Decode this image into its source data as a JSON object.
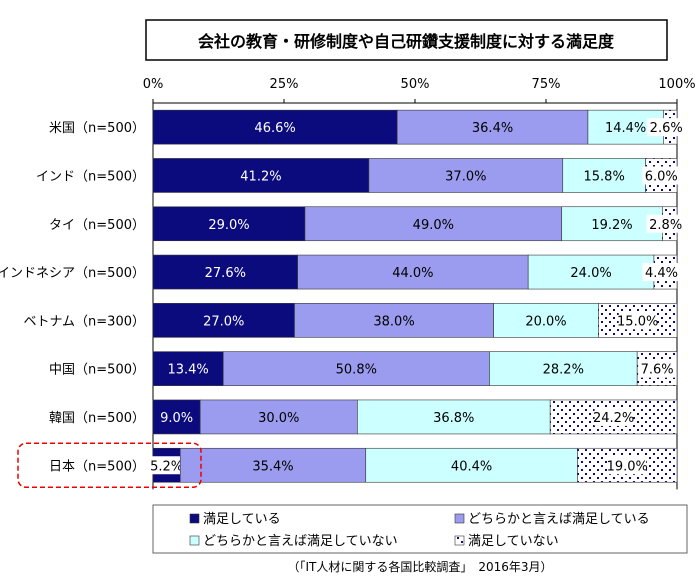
{
  "chart_data": {
    "type": "bar",
    "orientation": "horizontal-stacked-100",
    "title": "会社の教育・研修制度や自己研鑽支援制度に対する満足度",
    "xlim": [
      0,
      100
    ],
    "xticks": [
      "0%",
      "25%",
      "50%",
      "75%",
      "100%"
    ],
    "categories": [
      "米国（n=500）",
      "インド（n=500）",
      "タイ（n=500）",
      "インドネシア（n=500）",
      "ベトナム（n=300）",
      "中国（n=500）",
      "韓国（n=500）",
      "日本（n=500）"
    ],
    "series": [
      {
        "name": "満足している",
        "color": "#0b0b7d",
        "values": [
          46.6,
          41.2,
          29.0,
          27.6,
          27.0,
          13.4,
          9.0,
          5.2
        ]
      },
      {
        "name": "どちらかと言えば満足している",
        "color": "#9b9bef",
        "values": [
          36.4,
          37.0,
          49.0,
          44.0,
          38.0,
          50.8,
          30.0,
          35.4
        ]
      },
      {
        "name": "どちらかと言えば満足していない",
        "color": "#ccffff",
        "values": [
          14.4,
          15.8,
          19.2,
          24.0,
          20.0,
          28.2,
          36.8,
          40.4
        ]
      },
      {
        "name": "満足していない",
        "color": "dotted",
        "values": [
          2.6,
          6.0,
          2.8,
          4.4,
          15.0,
          7.6,
          24.2,
          19.0
        ]
      }
    ],
    "highlight": "日本（n=500）",
    "legend": "bottom",
    "source": "（「IT人材に関する各国比較調査」　2016年3月）"
  }
}
